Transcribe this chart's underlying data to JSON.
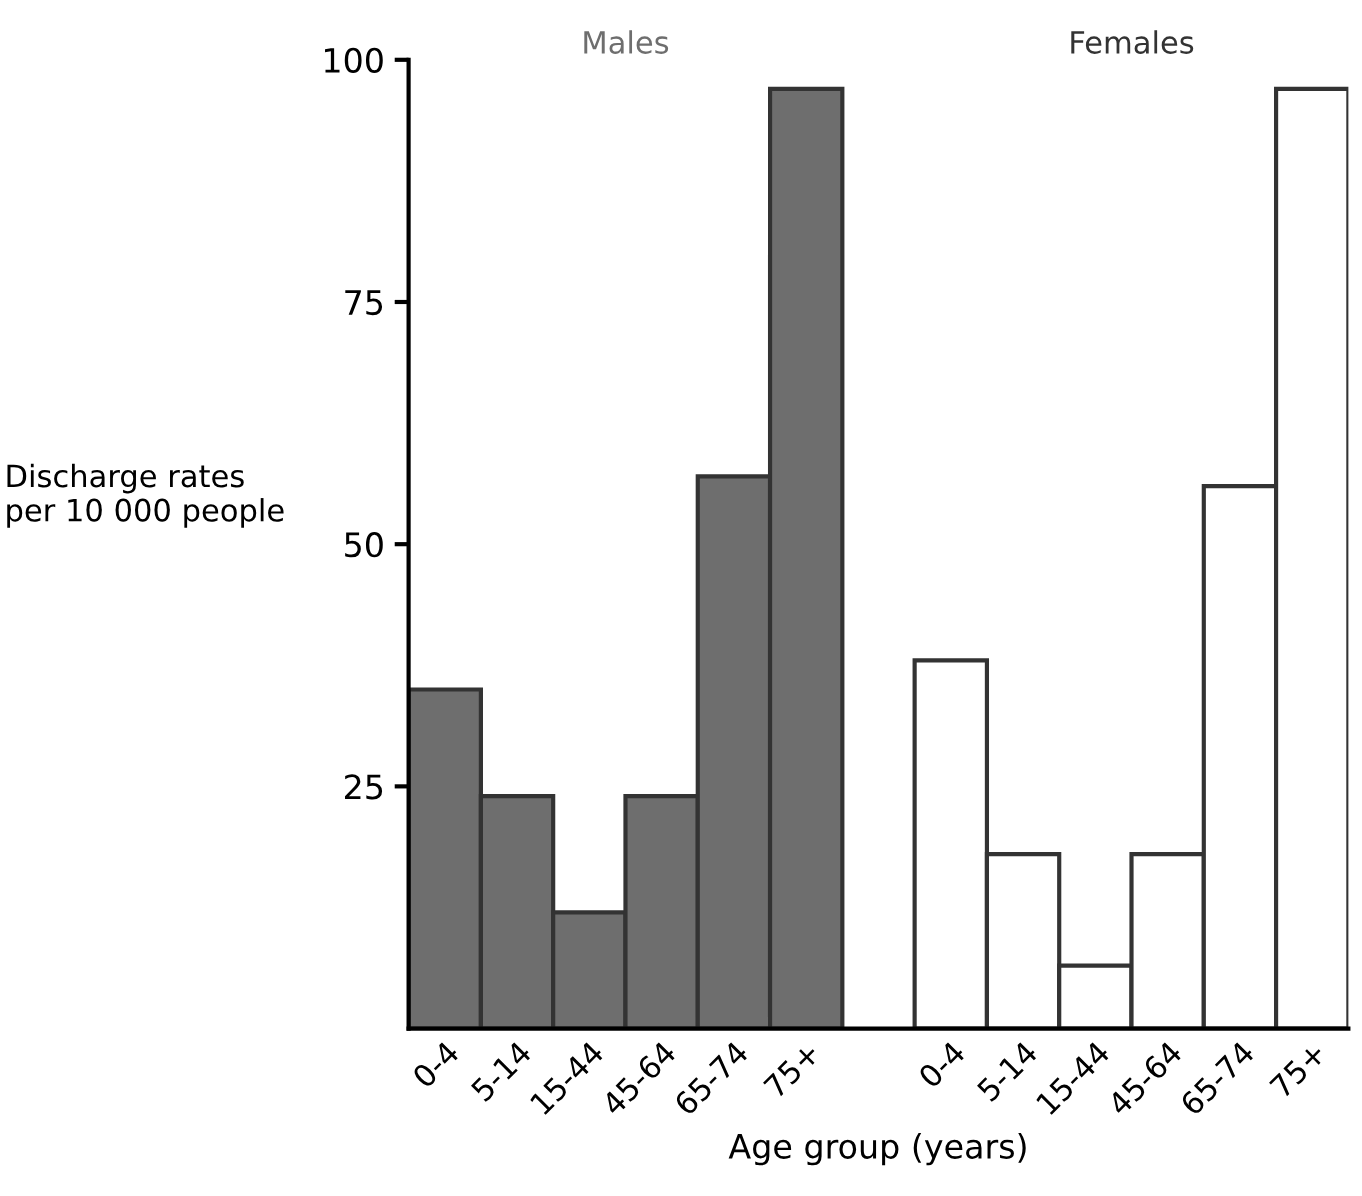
{
  "chart_data": {
    "type": "bar",
    "xlabel": "Age group (years)",
    "ylabel": "Discharge rates\nper 10 000 people",
    "categories": [
      "0-4",
      "5-14",
      "15-44",
      "45-64",
      "65-74",
      "75+",
      null,
      "0-4",
      "5-14",
      "15-44",
      "45-64",
      "65-74",
      "75+"
    ],
    "series": [
      {
        "name": "Males",
        "color": "#6e6e6e",
        "values": [
          35,
          24,
          12,
          24,
          57,
          97,
          null,
          null,
          null,
          null,
          null,
          null,
          null
        ]
      },
      {
        "name": "Females",
        "color": "#ffffff",
        "values": [
          null,
          null,
          null,
          null,
          null,
          null,
          null,
          38,
          18,
          6.5,
          18,
          56,
          97
        ]
      }
    ],
    "ylim": [
      0,
      100
    ],
    "yticks": [
      25,
      50,
      75,
      100
    ],
    "grid": false,
    "legend": false
  }
}
